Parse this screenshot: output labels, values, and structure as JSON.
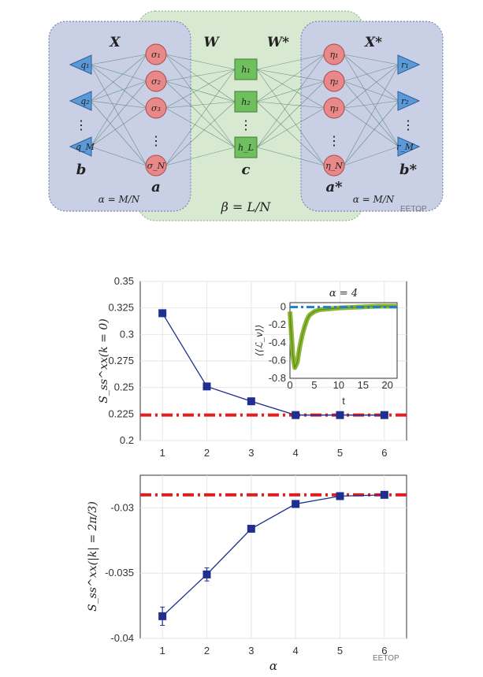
{
  "diagram": {
    "left_labels": {
      "X": "X",
      "b": "b",
      "a": "a",
      "alpha": "α = M/N"
    },
    "input_nodes": [
      "q₁",
      "q₂",
      "⋮",
      "q_M"
    ],
    "visible_nodes": [
      "σ₁",
      "σ₂",
      "σ₃",
      "⋮",
      "σ_N"
    ],
    "hidden_nodes": [
      "h₁",
      "h₂",
      "⋮",
      "h_L"
    ],
    "visible_star_nodes": [
      "η₁",
      "η₂",
      "η₃",
      "⋮",
      "η_N"
    ],
    "output_nodes": [
      "r₁",
      "r₂",
      "⋮",
      "r_M"
    ],
    "W": "W",
    "Wstar": "W*",
    "Xstar": "X*",
    "c": "c",
    "astar": "a*",
    "bstar": "b*",
    "alpha_right": "α = M/N",
    "beta": "β = L/N",
    "watermark": "EETOP"
  },
  "chart_data": [
    {
      "type": "line",
      "title": "",
      "xlabel": "",
      "ylabel": "S_ss^xx(k = 0)",
      "x": [
        1,
        2,
        3,
        4,
        5,
        6
      ],
      "values": [
        0.32,
        0.251,
        0.237,
        0.224,
        0.224,
        0.224
      ],
      "reference_line": 0.224,
      "xlim": [
        0.5,
        6.5
      ],
      "ylim": [
        0.2,
        0.35
      ],
      "xticks": [
        "1",
        "2",
        "3",
        "4",
        "5",
        "6"
      ],
      "yticks": [
        "0.2",
        "0.225",
        "0.25",
        "0.275",
        "0.3",
        "0.325",
        "0.35"
      ],
      "grid": true,
      "inset": {
        "type": "line",
        "title": "α = 4",
        "xlabel": "t",
        "ylabel": "⟨⟨ℒ_v⟩⟩",
        "xlim": [
          0,
          22
        ],
        "ylim": [
          -0.8,
          0.05
        ],
        "xticks": [
          "0",
          "5",
          "10",
          "15",
          "20"
        ],
        "yticks": [
          "0",
          "-0.2",
          "-0.4",
          "-0.6",
          "-0.8"
        ],
        "reference_line": 0,
        "curve": {
          "x": [
            0,
            0.3,
            0.6,
            1,
            1.5,
            2,
            2.5,
            3,
            3.5,
            4,
            5,
            6,
            8,
            10,
            14,
            18,
            22
          ],
          "y": [
            -0.05,
            -0.3,
            -0.55,
            -0.68,
            -0.62,
            -0.45,
            -0.32,
            -0.22,
            -0.14,
            -0.09,
            -0.05,
            -0.03,
            -0.02,
            -0.01,
            0,
            0.01,
            0.01
          ]
        }
      }
    },
    {
      "type": "line",
      "title": "",
      "xlabel": "α",
      "ylabel": "S_ss^xx(|k| = 2π/3)",
      "x": [
        1,
        2,
        3,
        4,
        5,
        6
      ],
      "values": [
        -0.0383,
        -0.0351,
        -0.0316,
        -0.0297,
        -0.0291,
        -0.029
      ],
      "errors": [
        0.0007,
        0.0005,
        0,
        0,
        0.0002,
        0.0002
      ],
      "reference_line": -0.029,
      "xlim": [
        0.5,
        6.5
      ],
      "ylim": [
        -0.04,
        -0.0275
      ],
      "xticks": [
        "1",
        "2",
        "3",
        "4",
        "5",
        "6"
      ],
      "yticks": [
        "-0.04",
        "-0.035",
        "-0.03"
      ],
      "grid": true
    }
  ],
  "colors": {
    "marker": "#1f2f8f",
    "reference": "#e02020",
    "inset_curve": "#7fae1f",
    "inset_ref": "#1a7fd0"
  }
}
